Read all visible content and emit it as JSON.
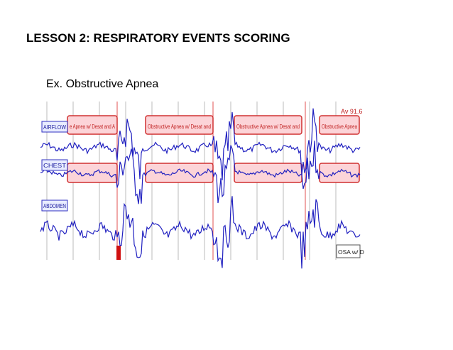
{
  "title": "LESSON 2: RESPIRATORY EVENTS SCORING",
  "subtitle": "Ex. Obstructive Apnea",
  "figure": {
    "channels": [
      "AIRFLOW",
      "CHEST",
      "ABDOMEN"
    ],
    "events": [
      "e Apnea w/ Desat and A",
      "Obstructive Apnea w/ Desat and",
      "Obstructive Apnea w/ Desat and",
      "Obstructive Apnea"
    ],
    "readout": "Av 91.6",
    "footer_label": "OSA w/ D"
  }
}
